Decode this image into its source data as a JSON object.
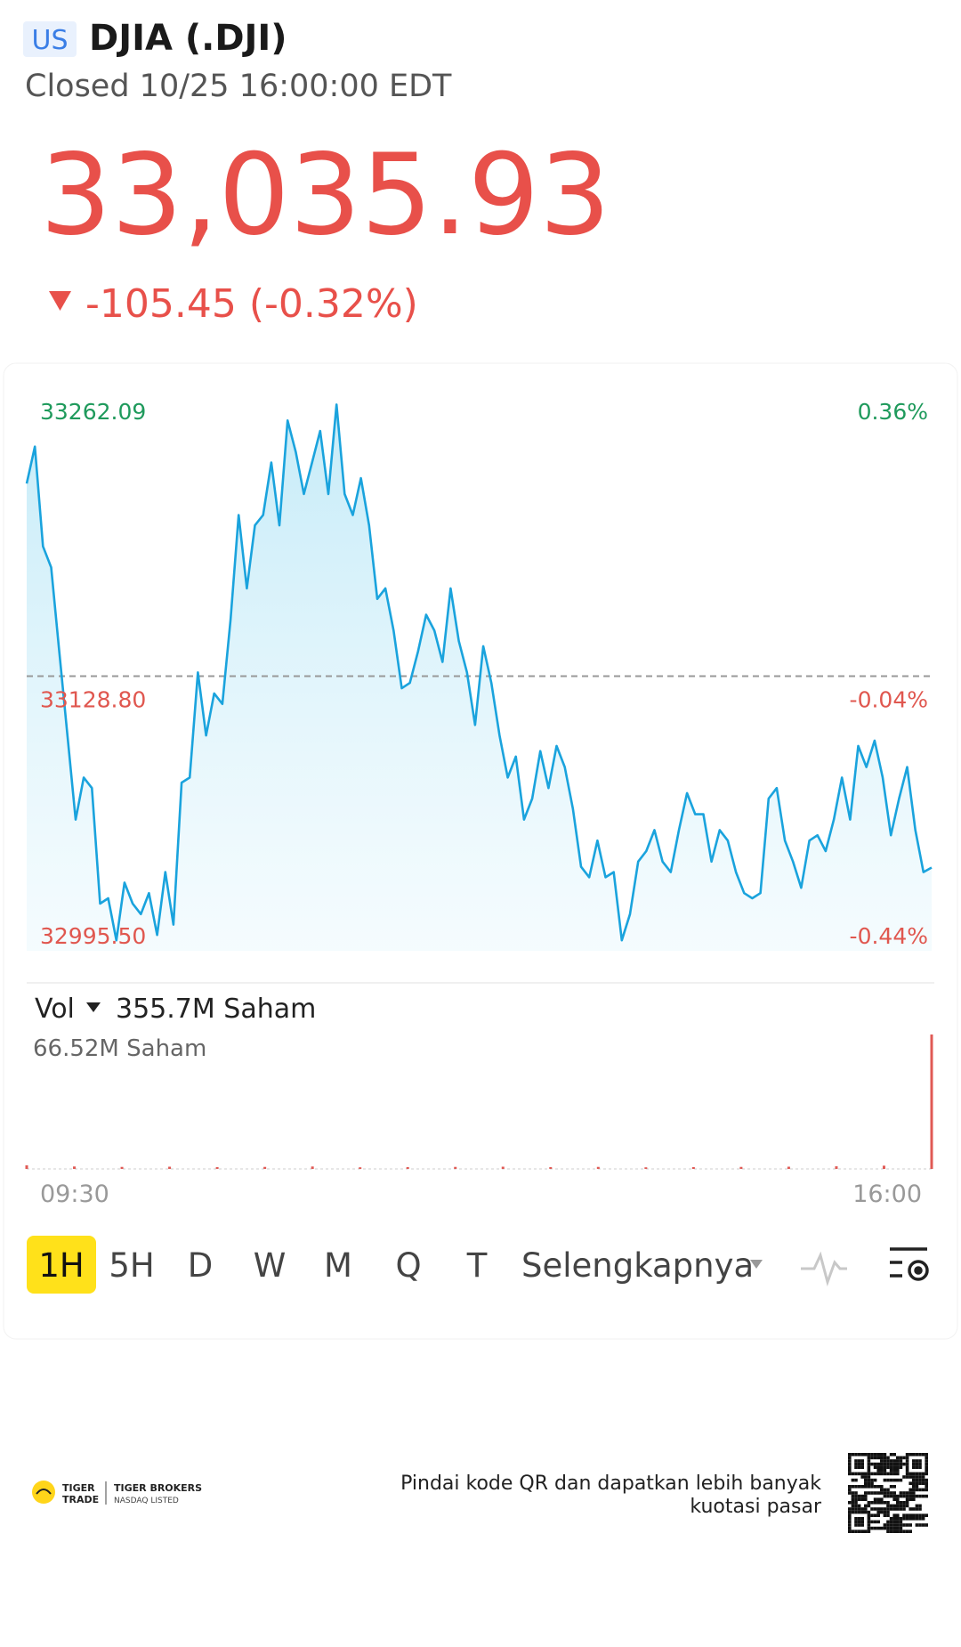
{
  "header": {
    "market": "US",
    "symbol": "DJIA (.DJI)",
    "status": "Closed 10/25 16:00:00 EDT"
  },
  "quote": {
    "price": "33,035.93",
    "change": "-105.45 (-0.32%)"
  },
  "chart_data": {
    "type": "line",
    "color": "#1aa3dd",
    "values": [
      33222.3,
      33240.2,
      33191.8,
      33181.6,
      33140.8,
      33100.0,
      33059.2,
      33079.6,
      33074.5,
      33018.4,
      33021.0,
      33000.6,
      33028.6,
      33018.4,
      33013.3,
      33023.5,
      33003.2,
      33033.7,
      33008.2,
      33077.1,
      33079.6,
      33130.6,
      33100.0,
      33120.4,
      33115.3,
      33156.1,
      33207.0,
      33171.4,
      33202.0,
      33207.0,
      33232.5,
      33202.0,
      33252.9,
      33237.6,
      33217.2,
      33232.5,
      33247.8,
      33217.2,
      33260.6,
      33217.2,
      33207.0,
      33224.9,
      33202.0,
      33166.3,
      33171.4,
      33151.0,
      33122.9,
      33125.5,
      33140.8,
      33158.6,
      33151.0,
      33135.7,
      33171.4,
      33145.9,
      33130.6,
      33105.1,
      33143.3,
      33125.5,
      33100.0,
      33079.6,
      33089.8,
      33059.2,
      33069.4,
      33092.4,
      33074.5,
      33094.9,
      33084.7,
      33064.3,
      33036.3,
      33031.2,
      33049.0,
      33031.2,
      33033.7,
      33000.6,
      33013.3,
      33038.8,
      33043.9,
      33054.1,
      33038.8,
      33033.7,
      33054.1,
      33072.0,
      33061.8,
      33061.8,
      33038.8,
      33054.1,
      33049.0,
      33033.7,
      33023.5,
      33021.0,
      33023.5,
      33069.4,
      33074.5,
      33049.0,
      33038.8,
      33026.1,
      33049.0,
      33051.6,
      33043.9,
      33059.2,
      33079.6,
      33059.2,
      33094.9,
      33084.7,
      33097.5,
      33079.6,
      33051.6,
      33069.4,
      33084.7,
      33054.1,
      33033.7,
      33035.9
    ],
    "ylim": [
      32995.5,
      33262.09
    ],
    "yticks": [
      {
        "value": 32995.5,
        "label": "32995.50"
      },
      {
        "value": 33128.8,
        "label": "33128.80"
      },
      33262.09
    ],
    "y2lim": [
      -0.44,
      0.36
    ],
    "y2ticks": [
      {
        "value": -0.44,
        "label": "-0.44%"
      },
      {
        "value": -0.04,
        "label": "-0.04%"
      },
      {
        "value": 0.36,
        "label": "0.36%"
      }
    ],
    "reference": 33128.8,
    "xlim": [
      "09:30",
      "16:00"
    ],
    "volume": {
      "label": "Vol",
      "total": "355.7M Saham",
      "color": "#e05a55",
      "values": [
        1.8,
        1.2,
        1.0,
        1.1,
        0.9,
        1.0,
        1.2,
        0.8,
        0.9,
        1.0,
        1.1,
        0.9,
        1.0,
        0.8,
        0.9,
        1.0,
        1.1,
        1.3,
        1.6,
        66.52
      ],
      "ylim": [
        0,
        66.52
      ],
      "yticks": [
        {
          "value": 66.52,
          "label": "66.52M Saham"
        }
      ]
    }
  },
  "tabs": {
    "items": [
      "1H",
      "5H",
      "D",
      "W",
      "M",
      "Q",
      "T",
      "Selengkapnya"
    ],
    "active": 0
  },
  "footer": {
    "brand": [
      "TIGER",
      "TRADE"
    ],
    "broker": [
      "TIGER BROKERS",
      "NASDAQ LISTED"
    ],
    "qr_text": [
      "Pindai kode QR dan dapatkan lebih banyak",
      "kuotasi pasar"
    ]
  }
}
